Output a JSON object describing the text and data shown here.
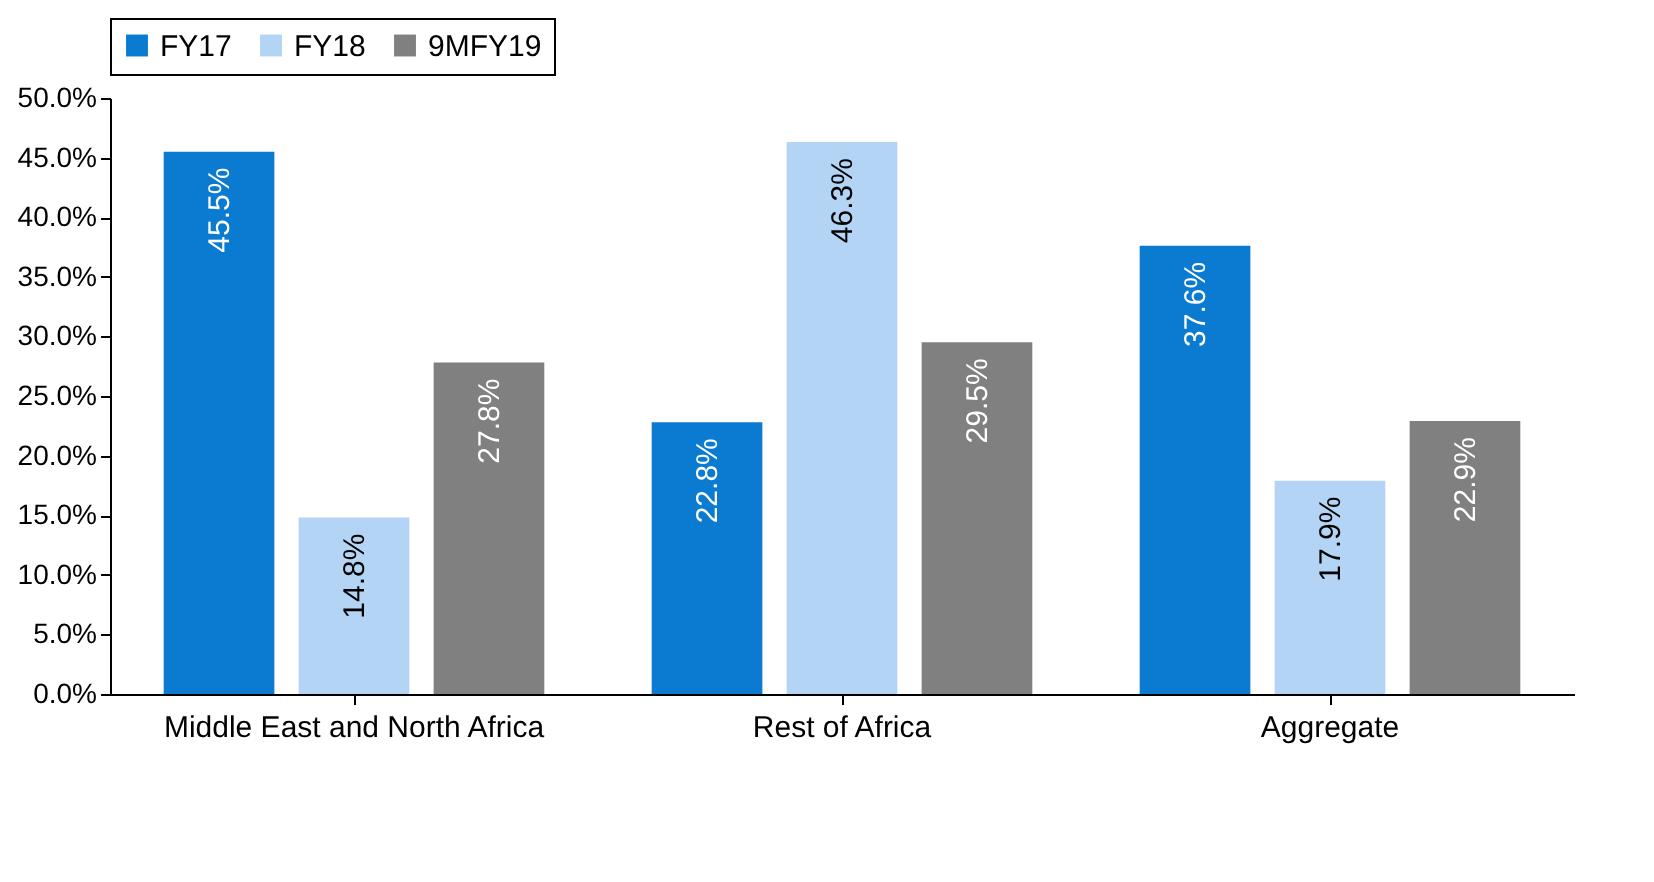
{
  "chart_data": {
    "type": "bar",
    "categories": [
      "Middle East and North Africa",
      "Rest of Africa",
      "Aggregate"
    ],
    "series": [
      {
        "name": "FY17",
        "color": "#0a7bd0",
        "values": [
          45.5,
          22.8,
          37.6
        ],
        "value_labels": [
          "45.5%",
          "22.8%",
          "37.6%"
        ]
      },
      {
        "name": "FY18",
        "color": "#b3d4f5",
        "values": [
          14.8,
          46.3,
          17.9
        ],
        "value_labels": [
          "14.8%",
          "46.3%",
          "17.9%"
        ]
      },
      {
        "name": "9MFY19",
        "color": "#808080",
        "values": [
          27.8,
          29.5,
          22.9
        ],
        "value_labels": [
          "27.8%",
          "29.5%",
          "22.9%"
        ]
      }
    ],
    "ylim": [
      0,
      50
    ],
    "yticks": [
      {
        "value": 0,
        "label": "0.0%"
      },
      {
        "value": 5,
        "label": "5.0%"
      },
      {
        "value": 10,
        "label": "10.0%"
      },
      {
        "value": 15,
        "label": "15.0%"
      },
      {
        "value": 20,
        "label": "20.0%"
      },
      {
        "value": 25,
        "label": "25.0%"
      },
      {
        "value": 30,
        "label": "30.0%"
      },
      {
        "value": 35,
        "label": "35.0%"
      },
      {
        "value": 40,
        "label": "40.0%"
      },
      {
        "value": 45,
        "label": "45.0%"
      },
      {
        "value": 50,
        "label": "50.0%"
      }
    ],
    "grid": false,
    "legend": "top"
  }
}
